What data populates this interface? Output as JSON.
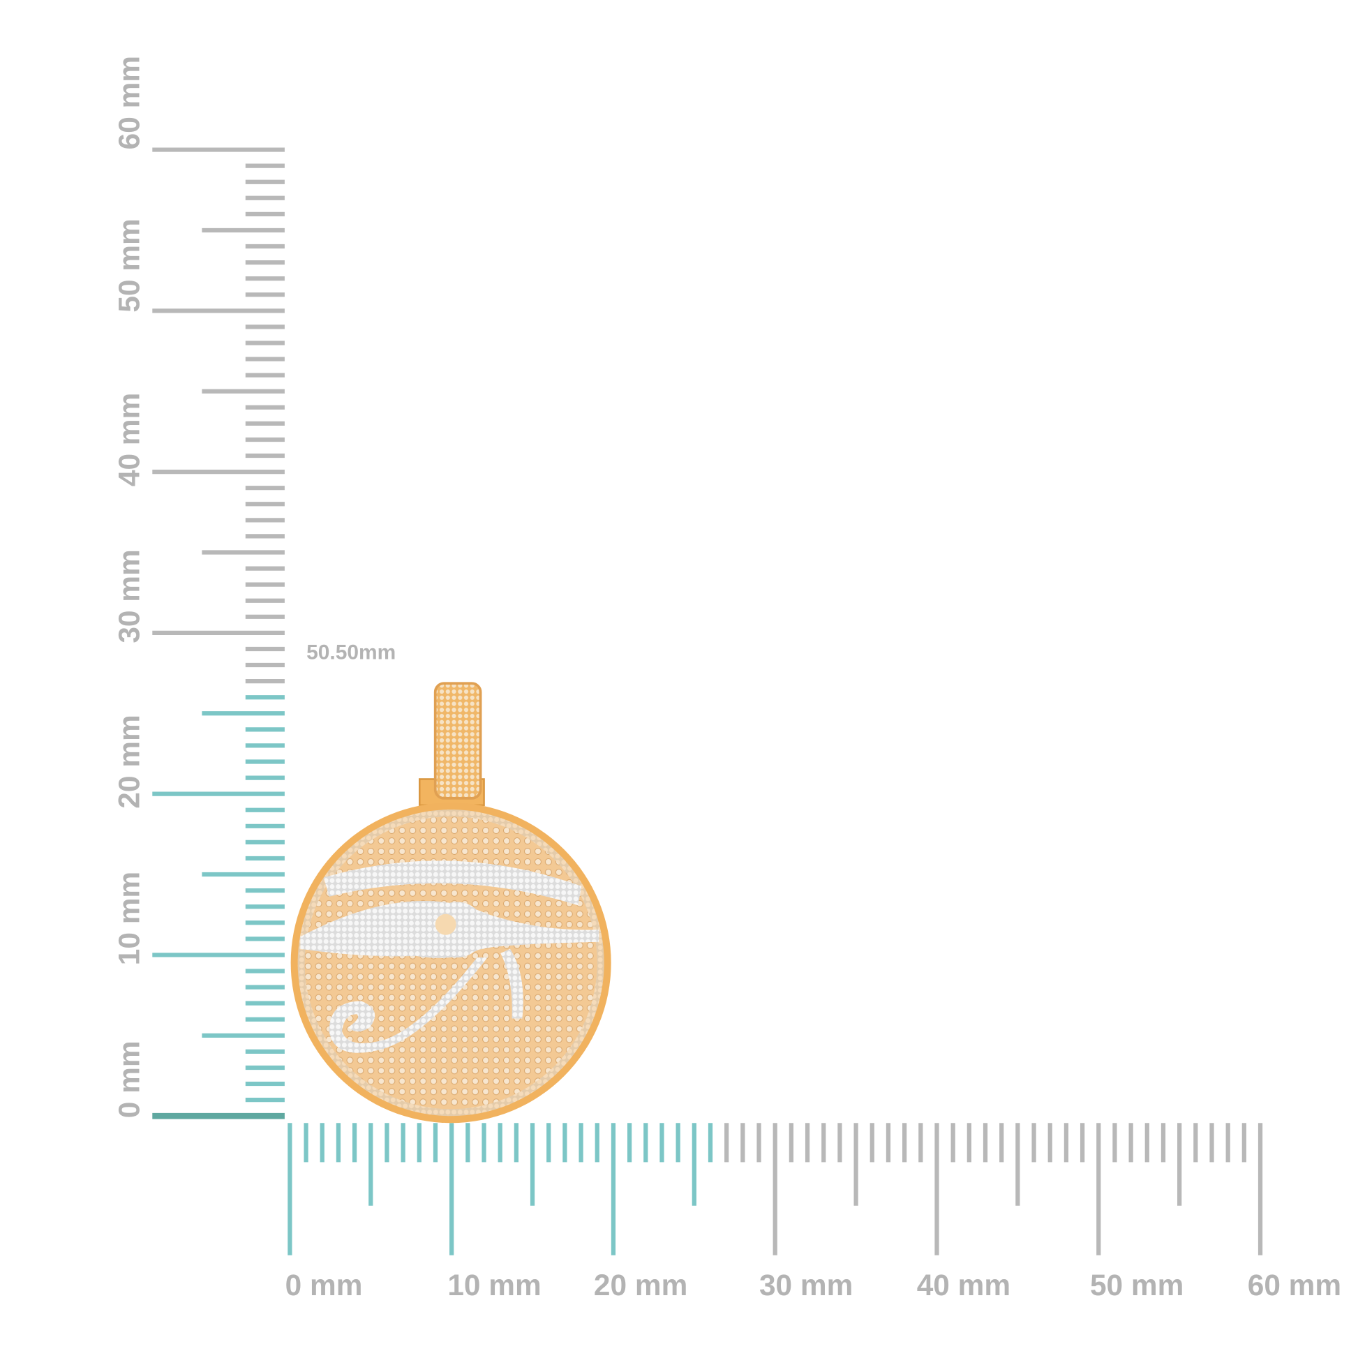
{
  "dimension_label": "50.50mm",
  "x_ruler": {
    "labels": [
      "0 mm",
      "10 mm",
      "20 mm",
      "30 mm",
      "40 mm",
      "50 mm",
      "60 mm"
    ]
  },
  "y_ruler": {
    "labels": [
      "0 mm",
      "10 mm",
      "20 mm",
      "30 mm",
      "40 mm",
      "50 mm",
      "60 mm"
    ]
  }
}
